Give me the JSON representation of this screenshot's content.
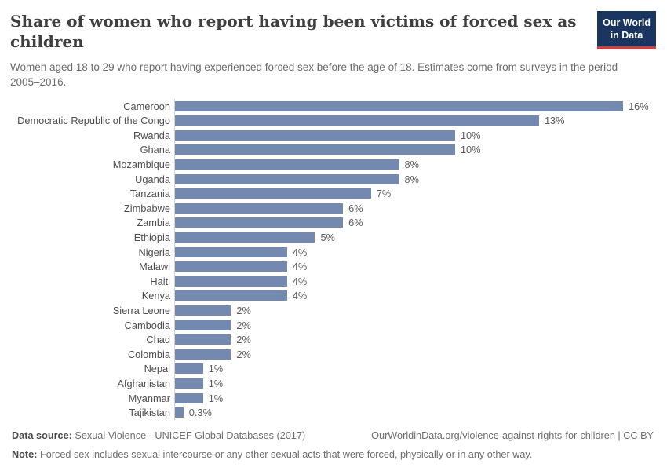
{
  "header": {
    "title": "Share of women who report having been victims of forced sex as children",
    "subtitle": "Women aged 18 to 29 who report having experienced forced sex before the age of 18. Estimates come from surveys in the period 2005–2016.",
    "logo": {
      "line1": "Our World",
      "line2": "in Data"
    }
  },
  "chart_data": {
    "type": "bar",
    "orientation": "horizontal",
    "title": "Share of women who report having been victims of forced sex as children",
    "xlabel": "",
    "ylabel": "",
    "xlim": [
      0,
      16
    ],
    "grid": false,
    "legend": false,
    "categories": [
      "Cameroon",
      "Democratic Republic of the Congo",
      "Rwanda",
      "Ghana",
      "Mozambique",
      "Uganda",
      "Tanzania",
      "Zimbabwe",
      "Zambia",
      "Ethiopia",
      "Nigeria",
      "Malawi",
      "Haiti",
      "Kenya",
      "Sierra Leone",
      "Cambodia",
      "Chad",
      "Colombia",
      "Nepal",
      "Afghanistan",
      "Myanmar",
      "Tajikistan"
    ],
    "values": [
      16,
      13,
      10,
      10,
      8,
      8,
      7,
      6,
      6,
      5,
      4,
      4,
      4,
      4,
      2,
      2,
      2,
      2,
      1,
      1,
      1,
      0.3
    ],
    "value_labels": [
      "16%",
      "13%",
      "10%",
      "10%",
      "8%",
      "8%",
      "7%",
      "6%",
      "6%",
      "5%",
      "4%",
      "4%",
      "4%",
      "4%",
      "2%",
      "2%",
      "2%",
      "2%",
      "1%",
      "1%",
      "1%",
      "0.3%"
    ]
  },
  "footer": {
    "datasource_label": "Data source:",
    "datasource_text": " Sexual Violence - UNICEF Global Databases (2017)",
    "link_text": "OurWorldinData.org/violence-against-rights-for-children | CC BY",
    "note_label": "Note:",
    "note_text": " Forced sex includes sexual intercourse or any other sexual acts that were forced, physically or in any other way."
  },
  "colors": {
    "bar": "#7489b0",
    "axis_line": "#d5d5d5",
    "logo_bg": "#1a3560",
    "logo_underline": "#cf3f3e"
  }
}
